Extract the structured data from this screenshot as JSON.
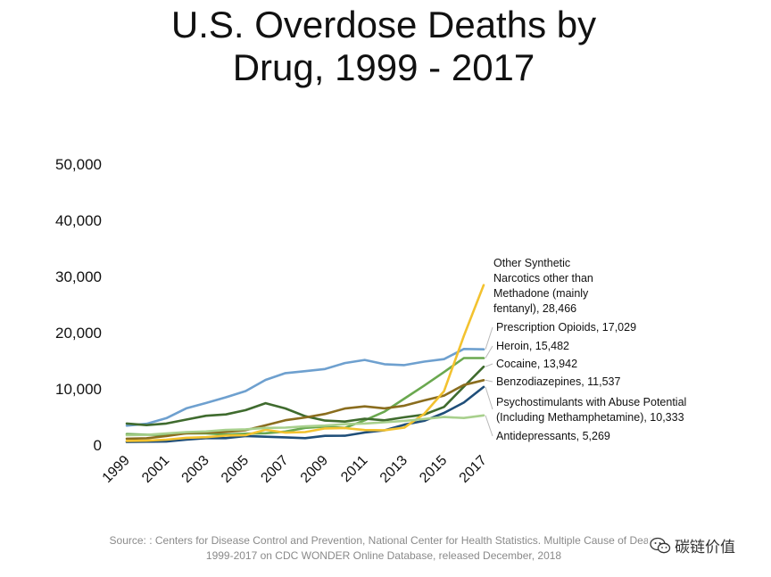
{
  "chart_data": {
    "type": "line",
    "title_lines": [
      "U.S. Overdose Deaths by",
      "Drug, 1999 - 2017"
    ],
    "x": [
      1999,
      2000,
      2001,
      2002,
      2003,
      2004,
      2005,
      2006,
      2007,
      2008,
      2009,
      2010,
      2011,
      2012,
      2013,
      2014,
      2015,
      2016,
      2017
    ],
    "x_tick_labels": [
      "1999",
      "2001",
      "2003",
      "2005",
      "2007",
      "2009",
      "2011",
      "2013",
      "2015",
      "2017"
    ],
    "y_tick_labels": [
      "0",
      "10,000",
      "20,000",
      "30,000",
      "40,000",
      "50,000"
    ],
    "ylim": [
      0,
      50000
    ],
    "grid": false,
    "legend": "direct labels at right",
    "series": [
      {
        "name": "Prescription Opioids",
        "label": "Prescription Opioids, 17,029",
        "color": "#6ea0cf",
        "values": [
          3442,
          3785,
          4770,
          6520,
          7470,
          8490,
          9600,
          11590,
          12800,
          13150,
          13520,
          14580,
          15140,
          14380,
          14220,
          14840,
          15280,
          17090,
          17029
        ]
      },
      {
        "name": "Heroin",
        "label": "Heroin, 15,482",
        "color": "#6aa84f",
        "values": [
          1960,
          1840,
          1780,
          2090,
          2080,
          1880,
          2010,
          2090,
          2400,
          3040,
          3280,
          3040,
          4400,
          5930,
          8260,
          10570,
          12990,
          15470,
          15482
        ]
      },
      {
        "name": "Cocaine",
        "label": "Cocaine, 13,942",
        "color": "#3f6b2e",
        "values": [
          3820,
          3540,
          3830,
          4520,
          5200,
          5440,
          6210,
          7450,
          6510,
          5130,
          4350,
          4180,
          4680,
          4400,
          4940,
          5420,
          6780,
          10380,
          13942
        ]
      },
      {
        "name": "Benzodiazepines",
        "label": "Benzodiazepines, 11,537",
        "color": "#8a6d1e",
        "values": [
          1130,
          1210,
          1590,
          2090,
          2230,
          2330,
          2640,
          3510,
          4410,
          4900,
          5520,
          6500,
          6870,
          6520,
          7000,
          7940,
          8790,
          10680,
          11537
        ]
      },
      {
        "name": "Psychostimulants",
        "label_lines": [
          "Psychostimulants with Abuse Potential",
          "(Including Methamphetamine), 10,333"
        ],
        "color": "#1f4e79",
        "values": [
          540,
          580,
          620,
          970,
          1230,
          1220,
          1610,
          1480,
          1370,
          1230,
          1630,
          1650,
          2230,
          2620,
          3620,
          4300,
          5720,
          7550,
          10333
        ]
      },
      {
        "name": "Other Synthetic Narcotics",
        "label_lines": [
          "Other Synthetic",
          "Narcotics other than",
          "Methadone (mainly",
          "fentanyl), 28,466"
        ],
        "color": "#f3c22f",
        "values": [
          730,
          780,
          960,
          1290,
          1400,
          1660,
          1740,
          2710,
          2210,
          2300,
          2950,
          3010,
          2670,
          2630,
          3100,
          5540,
          9580,
          19410,
          28466
        ]
      },
      {
        "name": "Antidepressants",
        "label": "Antidepressants, 5,269",
        "color": "#a8d08d",
        "values": [
          1750,
          1810,
          2040,
          2280,
          2410,
          2680,
          2790,
          3040,
          3100,
          3310,
          3460,
          3720,
          3820,
          4050,
          4300,
          4630,
          4990,
          4810,
          5269
        ]
      }
    ]
  },
  "source": {
    "line1": "Source: : Centers for Disease Control and Prevention, National Center for Health Statistics. Multiple Cause of Death",
    "line2": "1999-2017 on CDC WONDER Online Database, released December, 2018"
  },
  "watermark": {
    "text": "碳链价值",
    "icon": "wechat-icon"
  }
}
